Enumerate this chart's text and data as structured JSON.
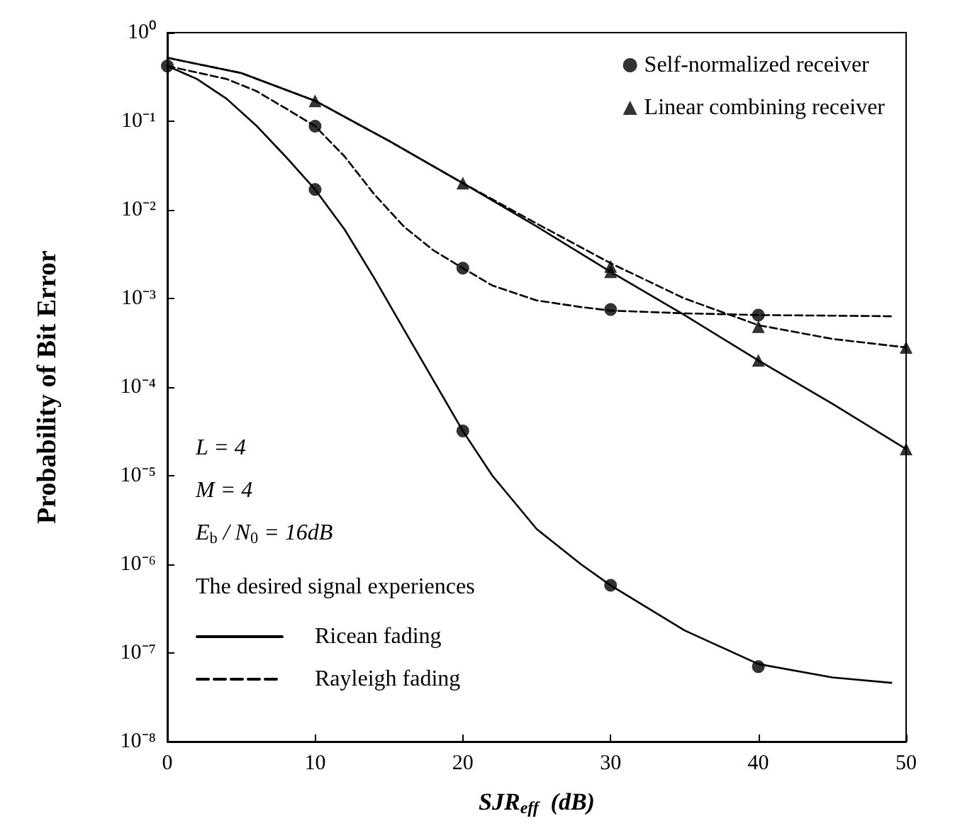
{
  "chart_data": {
    "type": "line",
    "ylabel": "Probability of Bit Error",
    "xlabel": "SJR$_{eff}$  (dB)",
    "xlim": [
      0,
      50
    ],
    "xticks": [
      0,
      10,
      20,
      30,
      40,
      50
    ],
    "ylim": [
      1e-08,
      1
    ],
    "yticks": [
      {
        "value": 1e-08,
        "label": "10⁻⁸"
      },
      {
        "value": 1e-07,
        "label": "10⁻⁷"
      },
      {
        "value": 1e-06,
        "label": "10⁻⁶"
      },
      {
        "value": 1e-05,
        "label": "10⁻⁵"
      },
      {
        "value": 0.0001,
        "label": "10⁻⁴"
      },
      {
        "value": 0.001,
        "label": "10⁻³"
      },
      {
        "value": 0.01,
        "label": "10⁻²"
      },
      {
        "value": 0.1,
        "label": "10⁻¹"
      },
      {
        "value": 1,
        "label": "10⁰"
      }
    ],
    "log": "y",
    "grid": false,
    "legend": "top right",
    "annotations": [
      "L = 4",
      "M = 4",
      "E$_{b}$ / N$_{0}$ = 16dB",
      "The desired signal experiences"
    ],
    "series": [
      {
        "name": "Ricean fading",
        "line_style": "solid",
        "marker": "none",
        "color": "#000000",
        "x": [
          0,
          2,
          4,
          6,
          8,
          10,
          12,
          14,
          16,
          18,
          20,
          22,
          25,
          28,
          30,
          35,
          40,
          45,
          49
        ],
        "values": [
          0.42,
          0.3,
          0.18,
          0.09,
          0.04,
          0.017,
          0.006,
          0.0017,
          0.00045,
          0.00012,
          3.2e-05,
          1e-05,
          2.5e-06,
          1e-06,
          5.8e-07,
          1.8e-07,
          7.5e-08,
          5.3e-08,
          4.6e-08
        ]
      },
      {
        "name": "Rayleigh fading",
        "line_style": "dashed",
        "marker": "none",
        "color": "#000000",
        "x": [
          0,
          4,
          6,
          8,
          10,
          12,
          14,
          16,
          18,
          20,
          22,
          25,
          28,
          30,
          35,
          40,
          45,
          49
        ],
        "values": [
          0.42,
          0.3,
          0.22,
          0.14,
          0.088,
          0.04,
          0.015,
          0.0065,
          0.0035,
          0.0022,
          0.0014,
          0.00095,
          0.0008,
          0.00073,
          0.00068,
          0.00065,
          0.00064,
          0.00063
        ]
      },
      {
        "line_style": "solid",
        "marker": "none",
        "color": "#000000",
        "x": [
          0,
          5,
          10,
          15,
          20,
          25,
          30,
          35,
          40,
          45,
          50
        ],
        "values": [
          0.52,
          0.35,
          0.17,
          0.06,
          0.02,
          0.0065,
          0.002,
          0.00065,
          0.0002,
          6.5e-05,
          2e-05
        ]
      },
      {
        "line_style": "dashed",
        "marker": "none",
        "color": "#000000",
        "x": [
          0,
          5,
          10,
          15,
          20,
          25,
          30,
          35,
          40,
          45,
          50
        ],
        "values": [
          0.52,
          0.35,
          0.17,
          0.06,
          0.02,
          0.007,
          0.0025,
          0.001,
          0.0005,
          0.00035,
          0.00028
        ]
      },
      {
        "name": "Self-normalized receiver",
        "type": "scatter",
        "marker": "circle",
        "color": "#000000",
        "x": [
          0,
          10,
          20,
          30,
          40,
          10,
          20,
          30,
          40
        ],
        "values": [
          0.42,
          0.017,
          3.2e-05,
          5.8e-07,
          7e-08,
          0.088,
          0.0022,
          0.00075,
          0.00065
        ]
      },
      {
        "name": "Linear combining receiver",
        "type": "scatter",
        "marker": "triangle",
        "color": "#000000",
        "x": [
          10,
          20,
          30,
          40,
          50,
          30,
          40,
          50
        ],
        "values": [
          0.17,
          0.02,
          0.002,
          0.0002,
          2e-05,
          0.0023,
          0.00048,
          0.00028
        ]
      }
    ]
  }
}
